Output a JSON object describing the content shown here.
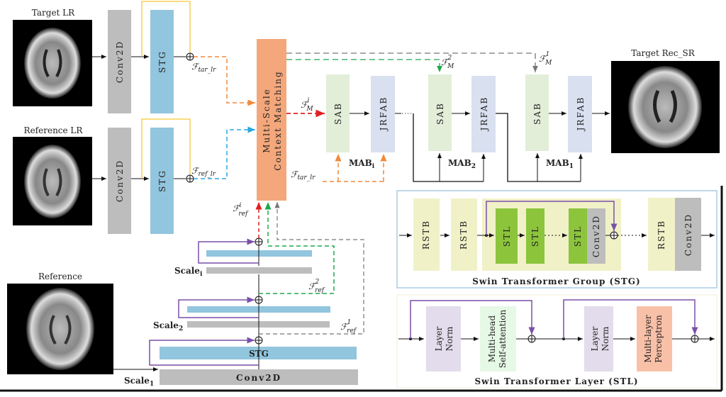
{
  "colors": {
    "conv": "#BDBDBD",
    "stg": "#92C5DE",
    "msm": "#F4A77B",
    "sab": "#E2EED8",
    "jrfab": "#D9E0F0",
    "rstb": "#F1F1C8",
    "stl": "#8CC43C",
    "layernorm": "#E3DCEC",
    "mhsa": "#E6F8E6",
    "mlp": "#F9C0A8",
    "purple": "#7A4FA8",
    "orange": "#F08A3C",
    "blue_dash": "#2BA6E0",
    "red": "#E02020",
    "green": "#1FA84E",
    "gray": "#777777",
    "panel_border": "#A8CCE0"
  },
  "labels": {
    "target_lr": "Target LR",
    "reference_lr": "Reference LR",
    "reference": "Reference",
    "target_rec": "Target Rec_SR"
  },
  "top": {
    "conv": "Conv2D",
    "stg": "STG"
  },
  "msm": {
    "line1": "Multi-Scale",
    "line2": "Context Matching"
  },
  "features": {
    "symbol": "ℱ",
    "tar_lr": "tar_lr",
    "ref_lr": "ref_lr",
    "M_sup_i": "i",
    "M_sup_2": "2",
    "M_sup_1": "1",
    "M_sub": "M",
    "ref_sup_i": "i",
    "ref_sup_2": "2",
    "ref_sup_1": "1",
    "ref_sub": "ref"
  },
  "mab": [
    {
      "sab": "SAB",
      "jrfab": "JRFAB",
      "label": "MAB",
      "sub": "i"
    },
    {
      "sab": "SAB",
      "jrfab": "JRFAB",
      "label": "MAB",
      "sub": "2"
    },
    {
      "sab": "SAB",
      "jrfab": "JRFAB",
      "label": "MAB",
      "sub": "1"
    }
  ],
  "scales": {
    "scale_i": "Scale",
    "sub_i": "i",
    "scale_2": "Scale",
    "sub_2": "2",
    "scale_1": "Scale",
    "sub_1": "1",
    "stg": "STG",
    "conv": "Conv2D"
  },
  "stg_panel": {
    "rstb": "RSTB",
    "stl": "STL",
    "conv": "Conv2D",
    "title": "Swin Transformer Group (STG)"
  },
  "stl_panel": {
    "layer_norm_1": "Layer",
    "layer_norm_2": "Norm",
    "mhsa_1": "Multi-head",
    "mhsa_2": "Self-attention",
    "mlp_1": "Multi-layer",
    "mlp_2": "Perceptron",
    "title": "Swin Transformer Layer (STL)"
  }
}
